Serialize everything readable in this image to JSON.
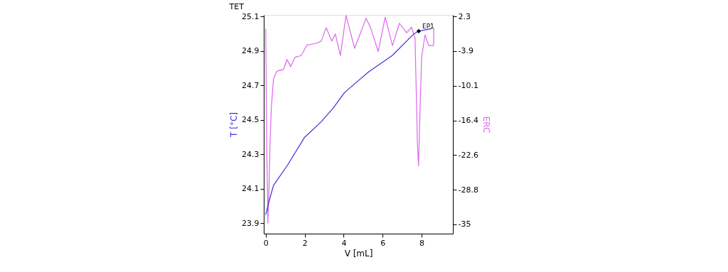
{
  "chart_data": {
    "type": "line",
    "title": "TET",
    "xlabel": "V [mL]",
    "ylabel": "T [°C]",
    "y2label": "ERC",
    "xlim": [
      -0.1,
      9.6
    ],
    "xticks": [
      0,
      2,
      4,
      6,
      8
    ],
    "ylim": [
      23.84,
      25.11
    ],
    "yticks": [
      23.9,
      24.1,
      24.3,
      24.5,
      24.7,
      24.9,
      25.1
    ],
    "y2lim": [
      -36.7,
      2.6
    ],
    "y2ticks": [
      -35,
      -28.8,
      -22.6,
      -16.4,
      -10.1,
      -3.9,
      2.3
    ],
    "series": [
      {
        "color": "#dd66ee",
        "axis": "y2",
        "x": [
          0.0,
          0.05,
          0.1,
          0.11,
          0.18,
          0.22,
          0.29,
          0.4,
          0.55,
          0.66,
          0.91,
          1.09,
          1.28,
          1.5,
          1.82,
          2.12,
          2.6,
          2.85,
          3.1,
          3.39,
          3.57,
          3.83,
          4.12,
          4.56,
          5.15,
          5.4,
          5.77,
          6.13,
          6.5,
          6.86,
          7.23,
          7.48,
          7.66,
          7.74,
          7.78,
          7.84,
          7.92,
          8.0,
          8.17,
          8.36,
          8.61,
          8.62
        ],
        "values": [
          0.1,
          -20.6,
          -30.6,
          -34.8,
          -27.2,
          -20.4,
          -14.0,
          -8.9,
          -7.6,
          -7.4,
          -7.2,
          -5.4,
          -6.7,
          -5.0,
          -4.7,
          -2.8,
          -2.5,
          -2.1,
          0.3,
          -2.1,
          -0.8,
          -4.7,
          2.5,
          -3.4,
          2.0,
          0.1,
          -4.0,
          2.2,
          -2.9,
          1.1,
          -0.6,
          0.4,
          -1.6,
          -14.0,
          -20.4,
          -24.5,
          -14.0,
          -5.0,
          -1.0,
          -2.9,
          -2.9,
          0.2
        ]
      },
      {
        "color": "#3a30d8",
        "x": [
          0.0,
          0.2,
          0.4,
          1.13,
          2.0,
          2.85,
          3.47,
          4.05,
          5.29,
          6.5,
          7.6,
          7.85,
          8.5
        ],
        "values": [
          23.95,
          24.04,
          24.12,
          24.24,
          24.4,
          24.49,
          24.57,
          24.66,
          24.78,
          24.875,
          25.0,
          25.016,
          25.03
        ]
      },
      {
        "type": "scatter",
        "marker": "diamond",
        "color": "#000000",
        "x": [
          7.85
        ],
        "values": [
          25.016
        ]
      }
    ],
    "annotations": [
      {
        "text": "EP1",
        "x": 7.85,
        "y": 25.016
      }
    ]
  }
}
